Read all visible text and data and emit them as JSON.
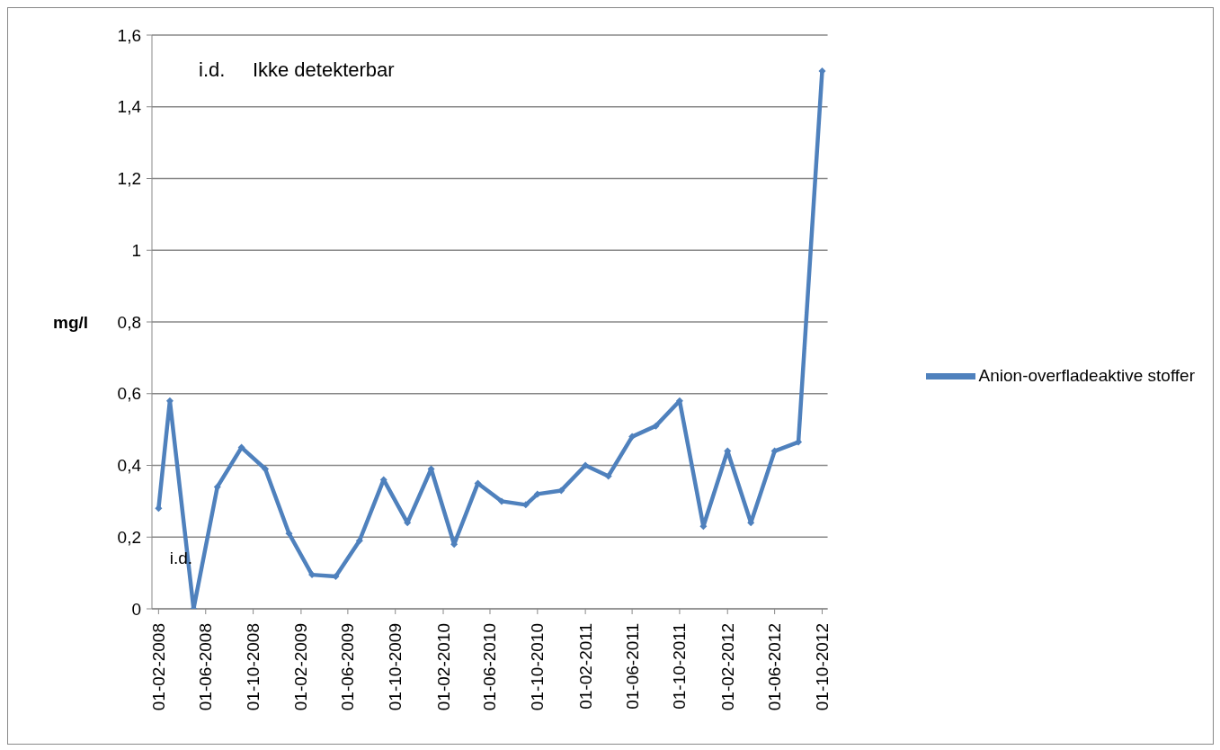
{
  "chart_data": {
    "type": "line",
    "ylabel": "mg/l",
    "x": [
      "2008-02",
      "2008-03",
      "2008-05",
      "2008-07",
      "2008-09",
      "2008-11",
      "2009-01",
      "2009-03",
      "2009-05",
      "2009-07",
      "2009-09",
      "2009-11",
      "2010-01",
      "2010-03",
      "2010-05",
      "2010-07",
      "2010-09",
      "2010-10",
      "2010-12",
      "2011-02",
      "2011-04",
      "2011-06",
      "2011-08",
      "2011-10",
      "2011-12",
      "2012-02",
      "2012-04",
      "2012-06",
      "2012-08",
      "2012-10"
    ],
    "series": [
      {
        "name": "Anion-overfladeaktive stoffer",
        "color": "#4f81bd",
        "values": [
          0.28,
          0.58,
          0,
          0.34,
          0.45,
          0.39,
          0.21,
          0.095,
          0.09,
          0.19,
          0.36,
          0.24,
          0.39,
          0.18,
          0.35,
          0.3,
          0.29,
          0.32,
          0.33,
          0.4,
          0.37,
          0.48,
          0.51,
          0.58,
          0.23,
          0.44,
          0.24,
          0.44,
          0.465,
          1.5
        ]
      }
    ],
    "xlim": [
      "2008-01-15",
      "2012-10-15"
    ],
    "xticks": [
      {
        "value": "2008-02-01",
        "label": "01-02-2008"
      },
      {
        "value": "2008-06-01",
        "label": "01-06-2008"
      },
      {
        "value": "2008-10-01",
        "label": "01-10-2008"
      },
      {
        "value": "2009-02-01",
        "label": "01-02-2009"
      },
      {
        "value": "2009-06-01",
        "label": "01-06-2009"
      },
      {
        "value": "2009-10-01",
        "label": "01-10-2009"
      },
      {
        "value": "2010-02-01",
        "label": "01-02-2010"
      },
      {
        "value": "2010-06-01",
        "label": "01-06-2010"
      },
      {
        "value": "2010-10-01",
        "label": "01-10-2010"
      },
      {
        "value": "2011-02-01",
        "label": "01-02-2011"
      },
      {
        "value": "2011-06-01",
        "label": "01-06-2011"
      },
      {
        "value": "2011-10-01",
        "label": "01-10-2011"
      },
      {
        "value": "2012-02-01",
        "label": "01-02-2012"
      },
      {
        "value": "2012-06-01",
        "label": "01-06-2012"
      },
      {
        "value": "2012-10-01",
        "label": "01-10-2012"
      }
    ],
    "ylim": [
      0,
      1.6
    ],
    "yticks": [
      0,
      {
        "value": 0.2,
        "label": "0,2"
      },
      {
        "value": 0.4,
        "label": "0,4"
      },
      {
        "value": 0.6,
        "label": "0,6"
      },
      {
        "value": 0.8,
        "label": "0,8"
      },
      1,
      {
        "value": 1.2,
        "label": "1,2"
      },
      {
        "value": 1.4,
        "label": "1,4"
      },
      {
        "value": 1.6,
        "label": "1,6"
      }
    ],
    "grid": "y",
    "legend": "right",
    "marker": "diamond",
    "line_style": "solid",
    "annotations": [
      "i.d.     Ikke detekterbar",
      {
        "text": "i.d.",
        "x": "2008-05",
        "y": 0
      }
    ]
  }
}
